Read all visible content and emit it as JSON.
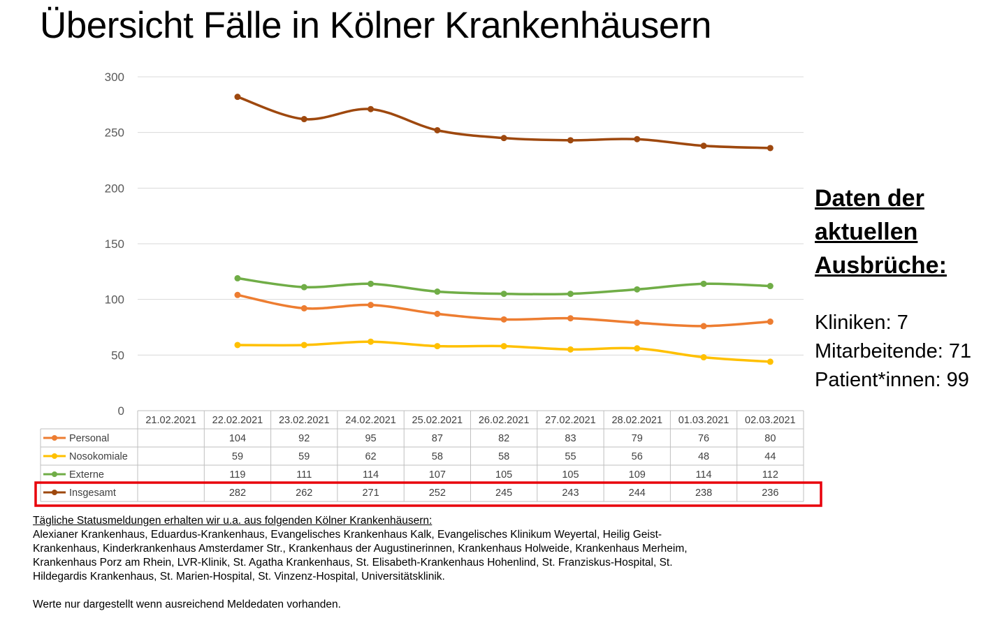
{
  "page": {
    "title": "Übersicht Fälle in Kölner Krankenhäusern"
  },
  "chart_data": {
    "type": "line",
    "title": "Übersicht Fälle in Kölner Krankenhäusern",
    "xlabel": "",
    "ylabel": "",
    "ylim": [
      0,
      300
    ],
    "yticks": [
      0,
      50,
      100,
      150,
      200,
      250,
      300
    ],
    "grid": true,
    "legend": "data-table",
    "categories": [
      "21.02.2021",
      "22.02.2021",
      "23.02.2021",
      "24.02.2021",
      "25.02.2021",
      "26.02.2021",
      "27.02.2021",
      "28.02.2021",
      "01.03.2021",
      "02.03.2021"
    ],
    "series": [
      {
        "name": "Personal",
        "color": "#ED7D31",
        "values": [
          null,
          104,
          92,
          95,
          87,
          82,
          83,
          79,
          76,
          80
        ]
      },
      {
        "name": "Nosokomiale",
        "color": "#FFC000",
        "values": [
          null,
          59,
          59,
          62,
          58,
          58,
          55,
          56,
          48,
          44
        ]
      },
      {
        "name": "Externe",
        "color": "#70AD47",
        "values": [
          null,
          119,
          111,
          114,
          107,
          105,
          105,
          109,
          114,
          112
        ]
      },
      {
        "name": "Insgesamt",
        "color": "#9E480E",
        "values": [
          null,
          282,
          262,
          271,
          252,
          245,
          243,
          244,
          238,
          236
        ]
      }
    ],
    "highlighted_series": "Insgesamt",
    "highlight_color": "#E8000B"
  },
  "sidebar": {
    "heading_lines": [
      "Daten der",
      "aktuellen",
      "Ausbrüche:"
    ],
    "stats": [
      {
        "label": "Kliniken",
        "value": "7"
      },
      {
        "label": "Mitarbeitende",
        "value": "71"
      },
      {
        "label": "Patient*innen",
        "value": "99"
      }
    ]
  },
  "notes": {
    "heading": "Tägliche Statusmeldungen erhalten wir u.a. aus folgenden Kölner Krankenhäusern:",
    "hospitals": "Alexianer Krankenhaus, Eduardus-Krankenhaus, Evangelisches Krankenhaus Kalk, Evangelisches Klinikum Weyertal, Heilig Geist-Krankenhaus, Kinderkrankenhaus Amsterdamer Str., Krankenhaus der Augustinerinnen, Krankenhaus Holweide, Krankenhaus Merheim, Krankenhaus Porz am Rhein, LVR-Klinik, St. Agatha Krankenhaus, St. Elisabeth-Krankenhaus Hohenlind, St. Franziskus-Hospital, St. Hildegardis Krankenhaus, St. Marien-Hospital, St. Vinzenz-Hospital, Universitätsklinik.",
    "disclaimer": "Werte nur dargestellt wenn ausreichend Meldedaten vorhanden."
  }
}
